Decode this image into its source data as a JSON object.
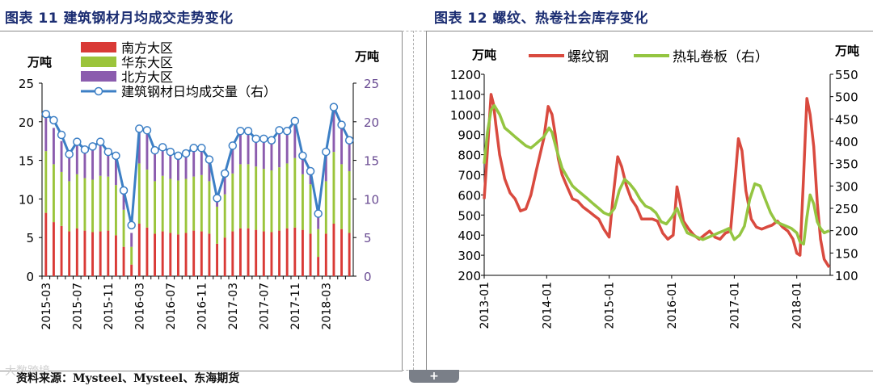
{
  "figure_left_title": "图表 11 建筑钢材月均成交走势变化",
  "figure_right_title": "图表 12 螺纹、热卷社会库存变化",
  "source_text": "资料来源：Mysteel、Mysteel、东海期货",
  "watermark_text": "大数跨境",
  "expand_label": "+",
  "colors": {
    "south": "#d93a36",
    "east": "#9bc43b",
    "north": "#8b5cae",
    "daily": "#3c7fc5",
    "rebar": "#d94a3f",
    "hotcoil": "#94c541",
    "title": "#1b2d72"
  },
  "chart_data": [
    {
      "type": "bar",
      "stacked": true,
      "ylabel": "万吨",
      "y2label": "万吨",
      "ylim": [
        0,
        25
      ],
      "y2lim": [
        0,
        25
      ],
      "yticks": [
        "0",
        "5",
        "10",
        "15",
        "20",
        "25"
      ],
      "y2ticks": [
        "0",
        "5",
        "10",
        "15",
        "20",
        "25"
      ],
      "legend_position": "top-left",
      "categories": [
        "2015-03",
        "2015-04",
        "2015-05",
        "2015-06",
        "2015-07",
        "2015-08",
        "2015-09",
        "2015-10",
        "2015-11",
        "2015-12",
        "2016-01",
        "2016-02",
        "2016-03",
        "2016-04",
        "2016-05",
        "2016-06",
        "2016-07",
        "2016-08",
        "2016-09",
        "2016-10",
        "2016-11",
        "2016-12",
        "2017-01",
        "2017-02",
        "2017-03",
        "2017-04",
        "2017-05",
        "2017-06",
        "2017-07",
        "2017-08",
        "2017-09",
        "2017-10",
        "2017-11",
        "2017-12",
        "2018-01",
        "2018-02",
        "2018-03",
        "2018-04",
        "2018-05",
        "2018-06"
      ],
      "xtick_labels": [
        "2015-03",
        "2015-07",
        "2015-11",
        "2016-03",
        "2016-07",
        "2016-11",
        "2017-03",
        "2017-07",
        "2017-11",
        "2018-03"
      ],
      "xtick_every": 4,
      "series": [
        {
          "name": "南方大区",
          "values": [
            8.2,
            7.0,
            6.5,
            5.8,
            6.2,
            5.9,
            5.7,
            5.8,
            5.9,
            5.3,
            3.8,
            1.5,
            6.8,
            6.3,
            5.5,
            5.8,
            5.6,
            5.4,
            5.6,
            5.9,
            5.8,
            5.5,
            4.2,
            5.0,
            5.8,
            6.2,
            6.2,
            6.0,
            5.8,
            5.7,
            5.9,
            6.2,
            6.3,
            6.0,
            5.5,
            2.5,
            5.5,
            6.8,
            6.1,
            5.6
          ]
        },
        {
          "name": "华东大区",
          "values": [
            8.0,
            7.5,
            7.0,
            6.5,
            7.0,
            6.8,
            6.8,
            7.2,
            7.0,
            6.5,
            4.8,
            2.3,
            7.8,
            7.5,
            6.8,
            7.2,
            7.0,
            7.0,
            7.0,
            7.0,
            7.3,
            6.8,
            4.8,
            5.6,
            7.5,
            8.3,
            8.3,
            8.2,
            8.1,
            8.0,
            8.2,
            8.4,
            9.0,
            7.2,
            6.4,
            3.6,
            6.8,
            9.3,
            8.4,
            8.0
          ]
        },
        {
          "name": "北方大区",
          "values": [
            4.8,
            4.7,
            4.0,
            3.3,
            4.2,
            3.7,
            4.2,
            4.2,
            3.6,
            3.3,
            2.4,
            1.8,
            4.4,
            4.6,
            3.7,
            3.8,
            3.7,
            3.0,
            3.3,
            3.6,
            3.3,
            2.7,
            1.5,
            2.6,
            3.7,
            4.5,
            4.3,
            4.1,
            4.3,
            4.3,
            5.0,
            4.6,
            5.0,
            2.6,
            2.1,
            2.2,
            3.6,
            5.3,
            5.1,
            4.0
          ]
        },
        {
          "name": "建筑钢材日均成交量（右）",
          "axis": "right",
          "values": [
            21.0,
            20.2,
            18.3,
            15.8,
            17.4,
            16.4,
            16.8,
            17.4,
            16.1,
            15.6,
            11.1,
            6.6,
            19.1,
            18.9,
            16.3,
            16.7,
            16.1,
            15.6,
            15.9,
            16.6,
            16.6,
            15.1,
            10.1,
            13.3,
            16.9,
            18.8,
            18.8,
            17.8,
            17.8,
            17.6,
            18.9,
            18.8,
            20.1,
            15.6,
            13.6,
            8.1,
            16.1,
            21.9,
            19.6,
            17.6
          ]
        }
      ]
    },
    {
      "type": "line",
      "ylabel": "万吨",
      "y2label": "万吨",
      "ylim": [
        200,
        1200
      ],
      "y2lim": [
        100,
        550
      ],
      "yticks": [
        "200",
        "300",
        "400",
        "500",
        "600",
        "700",
        "800",
        "900",
        "1000",
        "1100",
        "1200"
      ],
      "y2ticks": [
        "100",
        "150",
        "200",
        "250",
        "300",
        "350",
        "400",
        "450",
        "500",
        "550"
      ],
      "legend_position": "top",
      "xtick_labels": [
        "2013-01",
        "2014-01",
        "2015-01",
        "2016-01",
        "2017-01",
        "2018-01"
      ],
      "xlim": [
        "2013-01-01",
        "2018-07-15"
      ],
      "series": [
        {
          "name": "螺纹钢",
          "axis": "left",
          "x": [
            "2013-01-01",
            "2013-01-20",
            "2013-02-10",
            "2013-02-25",
            "2013-03-10",
            "2013-04-01",
            "2013-05-01",
            "2013-06-01",
            "2013-07-01",
            "2013-08-01",
            "2013-09-01",
            "2013-10-01",
            "2013-11-01",
            "2013-12-15",
            "2014-01-10",
            "2014-02-01",
            "2014-02-20",
            "2014-03-10",
            "2014-04-01",
            "2014-05-01",
            "2014-06-01",
            "2014-07-01",
            "2014-08-01",
            "2014-09-01",
            "2014-10-01",
            "2014-11-01",
            "2014-12-01",
            "2015-01-01",
            "2015-01-25",
            "2015-02-20",
            "2015-03-15",
            "2015-04-10",
            "2015-05-10",
            "2015-06-10",
            "2015-07-10",
            "2015-08-10",
            "2015-09-10",
            "2015-10-10",
            "2015-11-10",
            "2015-12-10",
            "2016-01-10",
            "2016-02-01",
            "2016-02-20",
            "2016-03-10",
            "2016-04-10",
            "2016-05-10",
            "2016-06-10",
            "2016-07-10",
            "2016-08-10",
            "2016-09-10",
            "2016-10-10",
            "2016-11-10",
            "2016-12-10",
            "2017-01-10",
            "2017-01-25",
            "2017-02-15",
            "2017-03-10",
            "2017-04-10",
            "2017-05-10",
            "2017-06-10",
            "2017-07-10",
            "2017-08-10",
            "2017-09-10",
            "2017-10-10",
            "2017-11-10",
            "2017-12-10",
            "2018-01-01",
            "2018-01-20",
            "2018-02-10",
            "2018-03-01",
            "2018-03-20",
            "2018-04-10",
            "2018-05-01",
            "2018-05-20",
            "2018-06-10",
            "2018-07-10"
          ],
          "values": [
            580,
            820,
            1100,
            1050,
            950,
            800,
            680,
            610,
            580,
            520,
            530,
            600,
            720,
            880,
            1040,
            1000,
            900,
            780,
            700,
            640,
            580,
            570,
            540,
            520,
            500,
            480,
            430,
            390,
            600,
            790,
            740,
            650,
            580,
            540,
            480,
            480,
            480,
            470,
            410,
            380,
            400,
            640,
            560,
            470,
            430,
            400,
            380,
            400,
            420,
            390,
            380,
            410,
            420,
            720,
            880,
            820,
            620,
            480,
            440,
            430,
            440,
            450,
            470,
            440,
            420,
            380,
            310,
            300,
            700,
            1080,
            1000,
            840,
            560,
            380,
            280,
            240
          ]
        },
        {
          "name": "热轧卷板（右）",
          "axis": "right",
          "x": [
            "2013-01-01",
            "2013-01-20",
            "2013-02-10",
            "2013-03-01",
            "2013-04-01",
            "2013-05-01",
            "2013-06-01",
            "2013-07-01",
            "2013-08-01",
            "2013-09-01",
            "2013-10-01",
            "2013-11-01",
            "2013-12-15",
            "2014-01-15",
            "2014-02-01",
            "2014-03-01",
            "2014-04-01",
            "2014-05-01",
            "2014-06-01",
            "2014-07-01",
            "2014-08-01",
            "2014-09-01",
            "2014-10-01",
            "2014-11-01",
            "2014-12-01",
            "2015-01-01",
            "2015-02-01",
            "2015-03-01",
            "2015-04-01",
            "2015-05-01",
            "2015-06-01",
            "2015-07-01",
            "2015-08-01",
            "2015-09-01",
            "2015-10-01",
            "2015-11-01",
            "2015-12-01",
            "2016-01-01",
            "2016-02-01",
            "2016-03-01",
            "2016-04-01",
            "2016-05-01",
            "2016-06-01",
            "2016-07-01",
            "2016-08-01",
            "2016-09-01",
            "2016-10-01",
            "2016-11-01",
            "2016-12-01",
            "2017-01-01",
            "2017-02-01",
            "2017-03-01",
            "2017-04-01",
            "2017-05-01",
            "2017-06-01",
            "2017-07-01",
            "2017-08-01",
            "2017-09-01",
            "2017-10-01",
            "2017-11-01",
            "2017-12-01",
            "2018-01-01",
            "2018-01-20",
            "2018-02-10",
            "2018-03-01",
            "2018-03-20",
            "2018-04-10",
            "2018-05-01",
            "2018-05-20",
            "2018-06-10",
            "2018-07-10"
          ],
          "values": [
            350,
            420,
            470,
            480,
            460,
            430,
            420,
            410,
            400,
            390,
            385,
            395,
            410,
            430,
            420,
            380,
            340,
            320,
            300,
            290,
            280,
            270,
            260,
            250,
            240,
            235,
            250,
            290,
            315,
            305,
            290,
            270,
            255,
            250,
            240,
            220,
            215,
            230,
            250,
            220,
            195,
            190,
            185,
            180,
            185,
            190,
            195,
            200,
            205,
            180,
            190,
            210,
            270,
            305,
            300,
            270,
            240,
            220,
            215,
            210,
            205,
            195,
            175,
            170,
            230,
            280,
            260,
            220,
            205,
            195,
            200
          ]
        }
      ]
    }
  ]
}
